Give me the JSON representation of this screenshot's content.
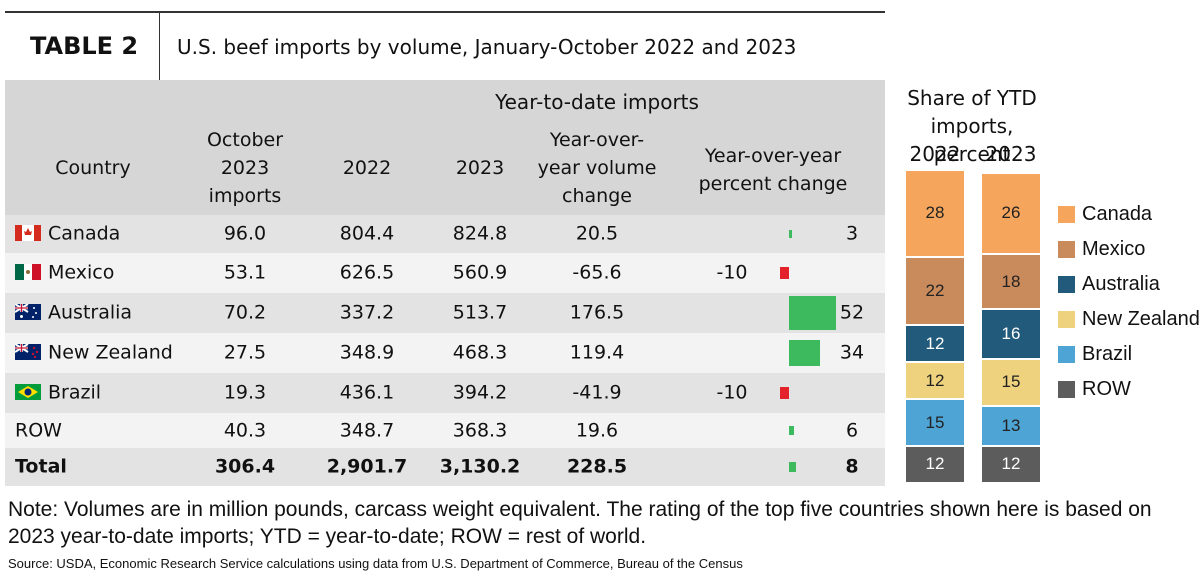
{
  "header": {
    "label": "TABLE 2",
    "title": "U.S. beef imports by volume, January-October 2022 and 2023"
  },
  "table": {
    "group_header": "Year-to-date imports",
    "columns": [
      "Country",
      "October 2023 imports",
      "2022",
      "2023",
      "Year-over-year volume change",
      "Year-over-year percent change"
    ],
    "rows": [
      {
        "cells": [
          "Canada",
          "96.0",
          "804.4",
          "824.8",
          "20.5"
        ],
        "percent_change": 3
      },
      {
        "cells": [
          "Mexico",
          "53.1",
          "626.5",
          "560.9",
          "-65.6"
        ],
        "percent_change": -10
      },
      {
        "cells": [
          "Australia",
          "70.2",
          "337.2",
          "513.7",
          "176.5"
        ],
        "percent_change": 52
      },
      {
        "cells": [
          "New Zealand",
          "27.5",
          "348.9",
          "468.3",
          "119.4"
        ],
        "percent_change": 34
      },
      {
        "cells": [
          "Brazil",
          "19.3",
          "436.1",
          "394.2",
          "-41.9"
        ],
        "percent_change": -10
      },
      {
        "cells": [
          "ROW",
          "40.3",
          "348.7",
          "368.3",
          "19.6"
        ],
        "percent_change": 6
      }
    ],
    "total": {
      "cells": [
        "Total",
        "306.4",
        "2,901.7",
        "3,130.2",
        "228.5"
      ],
      "percent_change": 8
    }
  },
  "chart_data": {
    "type": "stacked_bar",
    "title": "Share of YTD imports, percent",
    "categories": [
      "2022",
      "2023"
    ],
    "series": [
      {
        "name": "Canada",
        "color": "#f6a65c",
        "values": [
          28,
          26
        ]
      },
      {
        "name": "Mexico",
        "color": "#c98a5c",
        "values": [
          22,
          18
        ]
      },
      {
        "name": "Australia",
        "color": "#215a7a",
        "values": [
          12,
          16
        ]
      },
      {
        "name": "New Zealand",
        "color": "#efd27e",
        "values": [
          12,
          15
        ]
      },
      {
        "name": "Brazil",
        "color": "#4ea4d4",
        "values": [
          15,
          13
        ]
      },
      {
        "name": "ROW",
        "color": "#5c5c5c",
        "values": [
          12,
          12
        ]
      }
    ]
  },
  "note": "Note: Volumes are in million pounds, carcass weight equivalent. The rating of the top five countries shown here is based on 2023 year-to-date imports; YTD = year-to-date; ROW = rest of world.",
  "source": "Source: USDA, Economic Research Service calculations using data from U.S. Department of Commerce, Bureau of the Census"
}
